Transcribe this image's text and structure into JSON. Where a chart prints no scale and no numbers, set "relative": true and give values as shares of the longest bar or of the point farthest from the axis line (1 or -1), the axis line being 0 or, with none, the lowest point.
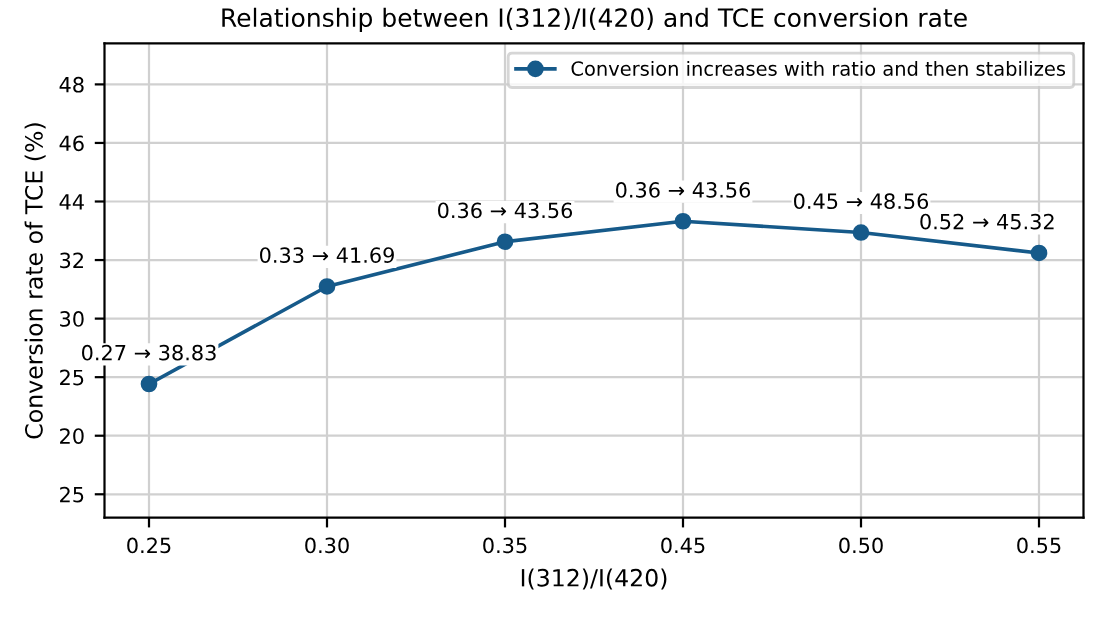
{
  "chart_data": {
    "type": "line",
    "title": "Relationship between I(312)/I(420) and TCE conversion rate",
    "xlabel": "I(312)/I(420)",
    "ylabel": "Conversion rate of TCE (%)",
    "categories": [
      "0.25",
      "0.30",
      "0.35",
      "0.45",
      "0.50",
      "0.55"
    ],
    "series": [
      {
        "name": "Conversion increases with ratio and then stabilizes",
        "color": "#165a8a",
        "values": [
          0.451,
          0.78,
          0.931,
          1,
          0.962,
          0.893
        ]
      }
    ],
    "relative": true,
    "annotations": [
      "25",
      "20",
      "25",
      "30",
      "32",
      "44",
      "46",
      "48",
      {
        "text": "0.27 → 38.83",
        "x": "0.25",
        "y": 0.451
      },
      {
        "text": "0.33 → 41.69",
        "x": "0.30",
        "y": 0.78
      },
      {
        "text": "0.36 → 43.56",
        "x": "0.35",
        "y": 0.931
      },
      {
        "text": "0.36 → 43.56",
        "x": "0.45",
        "y": 1
      },
      {
        "text": "0.45 → 48.56",
        "x": "0.50",
        "y": 0.962
      },
      {
        "text": "0.52 → 45.32",
        "x": "0.55",
        "y": 0.893
      }
    ],
    "grid": true,
    "legend": "top right",
    "marker": "circle",
    "line_style": "solid"
  }
}
